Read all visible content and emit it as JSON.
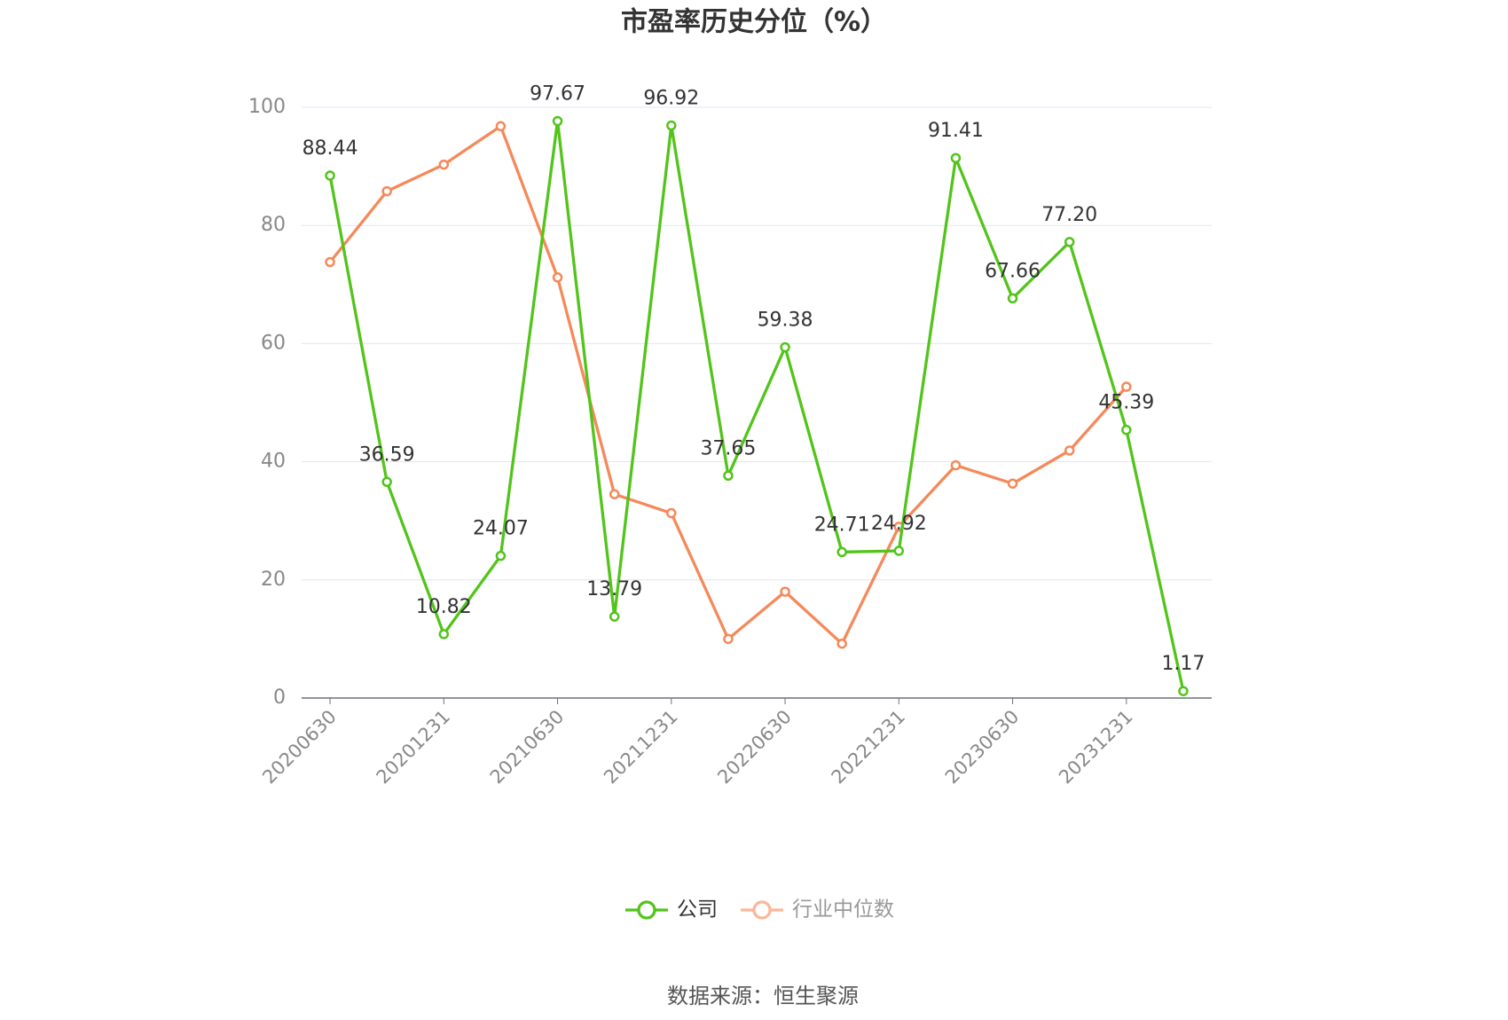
{
  "chart_data": {
    "type": "line",
    "title": "市盈率历史分位（%）",
    "source": "数据来源：恒生聚源",
    "categories": [
      "20200630",
      null,
      "20201231",
      null,
      "20210630",
      null,
      "20211231",
      null,
      "20220630",
      null,
      "20221231",
      null,
      "20230630",
      null,
      "20231231",
      null
    ],
    "series": [
      {
        "name": "公司",
        "color": "#52c41a",
        "values": [
          88.44,
          36.59,
          10.82,
          24.07,
          97.67,
          13.79,
          96.92,
          37.65,
          59.38,
          24.71,
          24.92,
          91.41,
          67.66,
          77.2,
          45.39,
          1.17
        ],
        "value_labels": [
          "88.44",
          "36.59",
          "10.82",
          "24.07",
          "97.67",
          "13.79",
          "96.92",
          "37.65",
          "59.38",
          "24.71",
          "24.92",
          "91.41",
          "67.66",
          "77.20",
          "45.39",
          "1.17"
        ]
      },
      {
        "name": "行业中位数",
        "color": "#f5895a",
        "values": [
          73.8,
          85.8,
          90.3,
          96.8,
          71.2,
          34.5,
          31.3,
          10.0,
          18.0,
          9.2,
          29.0,
          39.4,
          36.3,
          41.9,
          52.7,
          null
        ]
      }
    ],
    "ylim": [
      0,
      100
    ],
    "yticks": [
      0,
      20,
      40,
      60,
      80,
      100
    ],
    "grid": true
  }
}
